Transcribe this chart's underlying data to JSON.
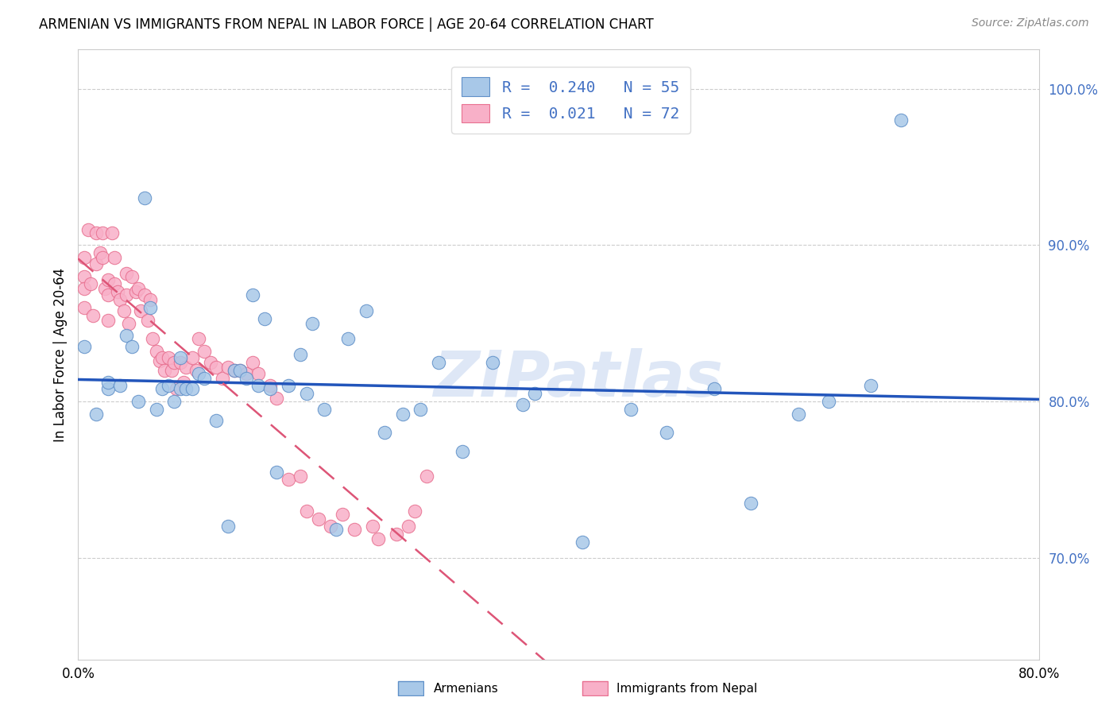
{
  "title": "ARMENIAN VS IMMIGRANTS FROM NEPAL IN LABOR FORCE | AGE 20-64 CORRELATION CHART",
  "source": "Source: ZipAtlas.com",
  "ylabel": "In Labor Force | Age 20-64",
  "xlim": [
    0.0,
    0.8
  ],
  "ylim": [
    0.635,
    1.025
  ],
  "yticks": [
    0.7,
    0.8,
    0.9,
    1.0
  ],
  "ytick_labels": [
    "70.0%",
    "80.0%",
    "90.0%",
    "100.0%"
  ],
  "xticks": [
    0.0,
    0.1,
    0.2,
    0.3,
    0.4,
    0.5,
    0.6,
    0.7,
    0.8
  ],
  "xtick_labels": [
    "0.0%",
    "",
    "",
    "",
    "",
    "",
    "",
    "",
    "80.0%"
  ],
  "blue_color": "#a8c8e8",
  "pink_color": "#f8b0c8",
  "blue_edge": "#6090c8",
  "pink_edge": "#e87090",
  "trend_blue": "#2255bb",
  "trend_pink": "#dd5577",
  "watermark": "ZIPatlas",
  "watermark_color": "#c8d8f0",
  "legend_blue_label": "R =  0.240   N = 55",
  "legend_pink_label": "R =  0.021   N = 72",
  "blue_scatter_x": [
    0.005,
    0.015,
    0.025,
    0.025,
    0.035,
    0.04,
    0.045,
    0.05,
    0.055,
    0.06,
    0.065,
    0.07,
    0.075,
    0.08,
    0.085,
    0.085,
    0.09,
    0.095,
    0.1,
    0.105,
    0.115,
    0.125,
    0.13,
    0.135,
    0.14,
    0.145,
    0.15,
    0.155,
    0.16,
    0.165,
    0.175,
    0.185,
    0.19,
    0.195,
    0.205,
    0.215,
    0.225,
    0.24,
    0.255,
    0.27,
    0.285,
    0.3,
    0.32,
    0.345,
    0.37,
    0.38,
    0.42,
    0.46,
    0.49,
    0.53,
    0.56,
    0.6,
    0.625,
    0.66,
    0.685
  ],
  "blue_scatter_y": [
    0.835,
    0.792,
    0.808,
    0.812,
    0.81,
    0.842,
    0.835,
    0.8,
    0.93,
    0.86,
    0.795,
    0.808,
    0.81,
    0.8,
    0.828,
    0.808,
    0.808,
    0.808,
    0.818,
    0.815,
    0.788,
    0.72,
    0.82,
    0.82,
    0.815,
    0.868,
    0.81,
    0.853,
    0.808,
    0.755,
    0.81,
    0.83,
    0.805,
    0.85,
    0.795,
    0.718,
    0.84,
    0.858,
    0.78,
    0.792,
    0.795,
    0.825,
    0.768,
    0.825,
    0.798,
    0.805,
    0.71,
    0.795,
    0.78,
    0.808,
    0.735,
    0.792,
    0.8,
    0.81,
    0.98
  ],
  "pink_scatter_x": [
    0.005,
    0.005,
    0.005,
    0.005,
    0.008,
    0.01,
    0.012,
    0.015,
    0.015,
    0.018,
    0.02,
    0.02,
    0.022,
    0.025,
    0.025,
    0.025,
    0.028,
    0.03,
    0.03,
    0.033,
    0.035,
    0.038,
    0.04,
    0.04,
    0.042,
    0.045,
    0.048,
    0.05,
    0.052,
    0.055,
    0.058,
    0.06,
    0.062,
    0.065,
    0.068,
    0.07,
    0.072,
    0.075,
    0.078,
    0.08,
    0.082,
    0.085,
    0.088,
    0.09,
    0.095,
    0.098,
    0.1,
    0.105,
    0.11,
    0.115,
    0.12,
    0.125,
    0.13,
    0.135,
    0.14,
    0.145,
    0.15,
    0.16,
    0.165,
    0.175,
    0.185,
    0.19,
    0.2,
    0.21,
    0.22,
    0.23,
    0.245,
    0.25,
    0.265,
    0.275,
    0.28,
    0.29
  ],
  "pink_scatter_y": [
    0.892,
    0.88,
    0.872,
    0.86,
    0.91,
    0.875,
    0.855,
    0.908,
    0.888,
    0.895,
    0.908,
    0.892,
    0.872,
    0.878,
    0.868,
    0.852,
    0.908,
    0.892,
    0.875,
    0.87,
    0.865,
    0.858,
    0.882,
    0.868,
    0.85,
    0.88,
    0.87,
    0.872,
    0.858,
    0.868,
    0.852,
    0.865,
    0.84,
    0.832,
    0.826,
    0.828,
    0.82,
    0.828,
    0.82,
    0.825,
    0.808,
    0.825,
    0.812,
    0.822,
    0.828,
    0.82,
    0.84,
    0.832,
    0.825,
    0.822,
    0.815,
    0.822,
    0.82,
    0.82,
    0.818,
    0.825,
    0.818,
    0.81,
    0.802,
    0.75,
    0.752,
    0.73,
    0.725,
    0.72,
    0.728,
    0.718,
    0.72,
    0.712,
    0.715,
    0.72,
    0.73,
    0.752
  ]
}
